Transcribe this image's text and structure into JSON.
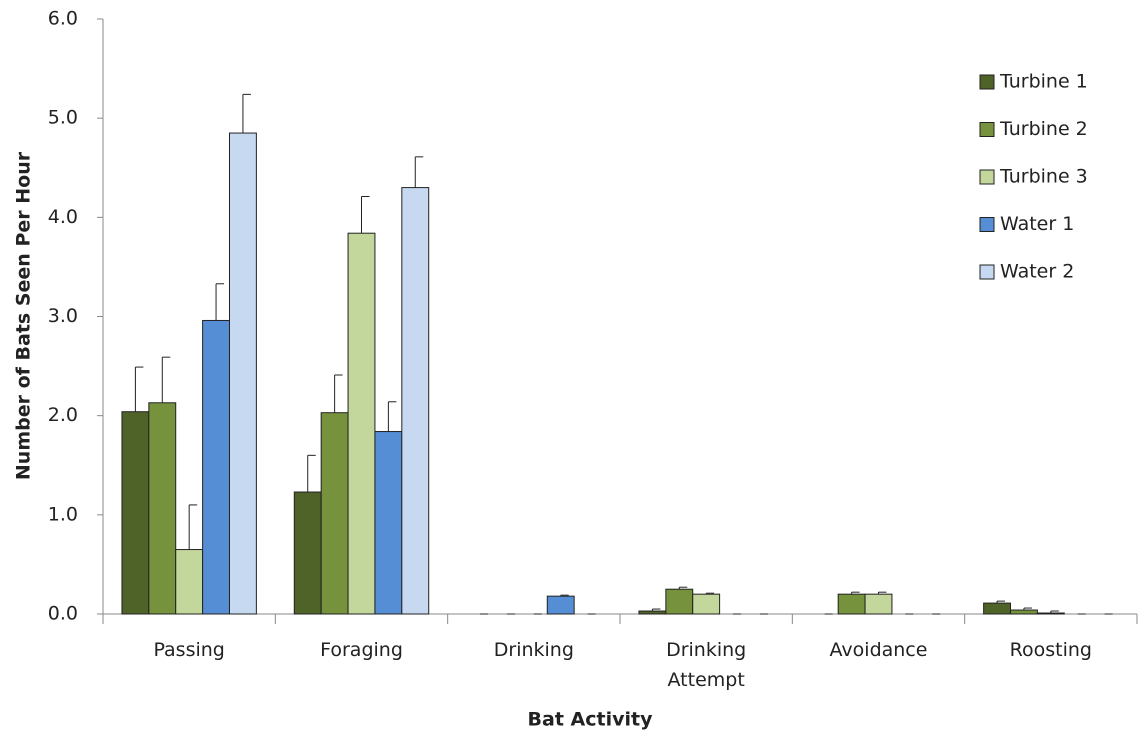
{
  "chart_data": {
    "type": "bar",
    "x_label": "Bat Activity",
    "y_label": "Number of Bats Seen Per Hour",
    "categories": [
      "Passing",
      "Foraging",
      "Drinking",
      "Drinking Attempt",
      "Avoidance",
      "Roosting"
    ],
    "series": [
      {
        "name": "Turbine 1",
        "color": "#4f6228",
        "values": [
          2.04,
          1.23,
          0,
          0.03,
          0,
          0.11
        ],
        "errors": [
          0.45,
          0.37,
          0,
          0.02,
          0,
          0.02
        ]
      },
      {
        "name": "Turbine 2",
        "color": "#76923c",
        "values": [
          2.13,
          2.03,
          0,
          0.25,
          0.2,
          0.04
        ],
        "errors": [
          0.46,
          0.38,
          0,
          0.02,
          0.02,
          0.02
        ]
      },
      {
        "name": "Turbine 3",
        "color": "#c3d69b",
        "values": [
          0.65,
          3.84,
          0,
          0.2,
          0.2,
          0.01
        ],
        "errors": [
          0.45,
          0.37,
          0,
          0.01,
          0.02,
          0.02
        ]
      },
      {
        "name": "Water 1",
        "color": "#558ed5",
        "values": [
          2.96,
          1.84,
          0.18,
          0,
          0,
          0
        ],
        "errors": [
          0.37,
          0.3,
          0.01,
          0,
          0,
          0
        ]
      },
      {
        "name": "Water 2",
        "color": "#c6d9f1",
        "values": [
          4.85,
          4.3,
          0,
          0,
          0,
          0
        ],
        "errors": [
          0.39,
          0.31,
          0,
          0,
          0,
          0
        ]
      }
    ],
    "ylim": [
      0,
      6
    ],
    "yticks": [
      {
        "value": 0,
        "label": "0.0"
      },
      {
        "value": 1,
        "label": "1.0"
      },
      {
        "value": 2,
        "label": "2.0"
      },
      {
        "value": 3,
        "label": "3.0"
      },
      {
        "value": 4,
        "label": "4.0"
      },
      {
        "value": 5,
        "label": "5.0"
      },
      {
        "value": 6,
        "label": "6.0"
      }
    ],
    "grid": false,
    "legend": "right"
  }
}
